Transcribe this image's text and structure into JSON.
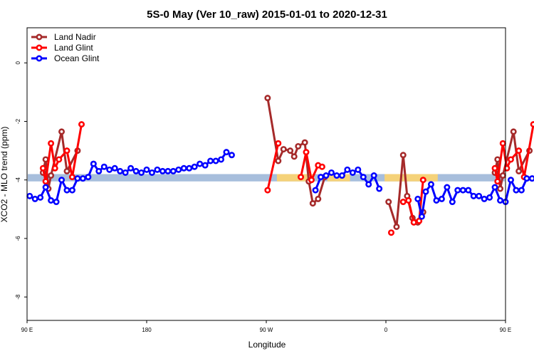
{
  "chart_data": {
    "type": "line",
    "title": "5S-0 May (Ver 10_raw)   2015-01-01 to 2020-12-31",
    "xlabel": "Longitude",
    "ylabel": "XCO2 - MLO trend (ppm)",
    "xlim": [
      90,
      450
    ],
    "ylim": [
      -8.8,
      1.2
    ],
    "x_ticks": [
      {
        "value": 90,
        "label": "90 E"
      },
      {
        "value": 180,
        "label": "180"
      },
      {
        "value": 270,
        "label": "90 W"
      },
      {
        "value": 360,
        "label": "0"
      },
      {
        "value": 450,
        "label": "90 E"
      },
      {
        "value": 540,
        "label": "180"
      }
    ],
    "y_ticks": [
      {
        "value": 0,
        "label": "0"
      },
      {
        "value": -2,
        "label": "-2"
      },
      {
        "value": -4,
        "label": "-4"
      },
      {
        "value": -6,
        "label": "-6"
      },
      {
        "value": -8,
        "label": "-8"
      }
    ],
    "grid": false,
    "legend_position": "top-left",
    "reference_band": {
      "y": [
        -4.05,
        -3.8
      ],
      "colors": {
        "ocean": "#a7bedc",
        "land": "#f5d279"
      },
      "land_segments": [
        [
          278,
          306
        ],
        [
          316,
          333
        ],
        [
          359,
          399
        ]
      ]
    },
    "series": [
      {
        "name": "Land Nadir",
        "color": "#a52a2a",
        "points": [
          [
            102,
            -3.75
          ],
          [
            104,
            -3.3
          ],
          [
            106,
            -4.3
          ],
          [
            108,
            -3.85
          ],
          [
            116,
            -2.35
          ],
          [
            120,
            -3.7
          ],
          [
            128,
            -3.0
          ],
          [
            271,
            -1.2
          ],
          [
            279,
            -3.35
          ],
          [
            283,
            -2.95
          ],
          [
            288,
            -3.0
          ],
          [
            291,
            -3.2
          ],
          [
            294,
            -2.85
          ],
          [
            299,
            -2.72
          ],
          [
            302,
            -4.05
          ],
          [
            305,
            -4.8
          ],
          [
            309,
            -4.65
          ],
          [
            314,
            -3.9
          ],
          [
            362,
            -4.75
          ],
          [
            368,
            -5.6
          ],
          [
            373,
            -3.15
          ],
          [
            376,
            -4.55
          ],
          [
            380,
            -5.3
          ],
          [
            384,
            -5.45
          ],
          [
            388,
            -5.1
          ],
          [
            442,
            -3.75
          ],
          [
            444,
            -3.3
          ],
          [
            446,
            -4.3
          ],
          [
            448,
            -3.85
          ],
          [
            456,
            -2.35
          ],
          [
            460,
            -3.7
          ],
          [
            468,
            -3.0
          ]
        ]
      },
      {
        "name": "Land Glint",
        "color": "#ff0000",
        "points": [
          [
            102,
            -3.6
          ],
          [
            104,
            -4.05
          ],
          [
            108,
            -2.75
          ],
          [
            111,
            -3.6
          ],
          [
            114,
            -3.3
          ],
          [
            120,
            -3.0
          ],
          [
            124,
            -3.9
          ],
          [
            131,
            -2.1
          ],
          [
            271,
            -4.35
          ],
          [
            279,
            -2.75
          ],
          [
            296,
            -3.9
          ],
          [
            300,
            -3.05
          ],
          [
            304,
            -4.0
          ],
          [
            309,
            -3.5
          ],
          [
            312,
            -3.55
          ],
          [
            364,
            -5.8
          ],
          [
            373,
            -4.75
          ],
          [
            377,
            -4.7
          ],
          [
            381,
            -5.45
          ],
          [
            385,
            -5.4
          ],
          [
            388,
            -4.0
          ],
          [
            442,
            -3.6
          ],
          [
            444,
            -4.05
          ],
          [
            448,
            -2.75
          ],
          [
            451,
            -3.6
          ],
          [
            454,
            -3.3
          ],
          [
            460,
            -3.0
          ],
          [
            464,
            -3.9
          ],
          [
            471,
            -2.1
          ]
        ]
      },
      {
        "name": "Ocean Glint",
        "color": "#0000ff",
        "points": [
          [
            92,
            -4.55
          ],
          [
            96,
            -4.65
          ],
          [
            100,
            -4.6
          ],
          [
            104,
            -4.25
          ],
          [
            108,
            -4.7
          ],
          [
            112,
            -4.75
          ],
          [
            116,
            -4.0
          ],
          [
            120,
            -4.35
          ],
          [
            124,
            -4.35
          ],
          [
            128,
            -3.95
          ],
          [
            132,
            -3.95
          ],
          [
            136,
            -3.9
          ],
          [
            140,
            -3.45
          ],
          [
            144,
            -3.7
          ],
          [
            148,
            -3.55
          ],
          [
            152,
            -3.65
          ],
          [
            156,
            -3.6
          ],
          [
            160,
            -3.7
          ],
          [
            164,
            -3.75
          ],
          [
            168,
            -3.6
          ],
          [
            172,
            -3.7
          ],
          [
            176,
            -3.75
          ],
          [
            180,
            -3.65
          ],
          [
            184,
            -3.75
          ],
          [
            188,
            -3.65
          ],
          [
            192,
            -3.7
          ],
          [
            196,
            -3.7
          ],
          [
            200,
            -3.7
          ],
          [
            204,
            -3.65
          ],
          [
            208,
            -3.6
          ],
          [
            212,
            -3.6
          ],
          [
            216,
            -3.55
          ],
          [
            220,
            -3.45
          ],
          [
            224,
            -3.5
          ],
          [
            228,
            -3.35
          ],
          [
            232,
            -3.35
          ],
          [
            236,
            -3.3
          ],
          [
            240,
            -3.05
          ],
          [
            244,
            -3.15
          ],
          [
            307,
            -4.35
          ],
          [
            311,
            -3.9
          ],
          [
            315,
            -3.85
          ],
          [
            319,
            -3.75
          ],
          [
            323,
            -3.85
          ],
          [
            327,
            -3.85
          ],
          [
            331,
            -3.65
          ],
          [
            335,
            -3.75
          ],
          [
            339,
            -3.65
          ],
          [
            343,
            -3.9
          ],
          [
            347,
            -4.15
          ],
          [
            351,
            -3.85
          ],
          [
            355,
            -4.3
          ],
          [
            384,
            -4.65
          ],
          [
            387,
            -5.25
          ],
          [
            390,
            -4.4
          ],
          [
            394,
            -4.15
          ],
          [
            398,
            -4.7
          ],
          [
            402,
            -4.65
          ],
          [
            406,
            -4.25
          ],
          [
            410,
            -4.75
          ],
          [
            414,
            -4.35
          ],
          [
            418,
            -4.35
          ],
          [
            422,
            -4.35
          ],
          [
            426,
            -4.55
          ],
          [
            430,
            -4.55
          ],
          [
            434,
            -4.65
          ],
          [
            438,
            -4.6
          ],
          [
            442,
            -4.25
          ],
          [
            446,
            -4.7
          ],
          [
            450,
            -4.75
          ],
          [
            454,
            -4.0
          ],
          [
            458,
            -4.35
          ],
          [
            462,
            -4.35
          ],
          [
            466,
            -3.95
          ],
          [
            470,
            -3.95
          ],
          [
            474,
            -3.9
          ],
          [
            478,
            -3.45
          ],
          [
            482,
            -3.7
          ],
          [
            486,
            -3.55
          ],
          [
            490,
            -3.65
          ],
          [
            494,
            -3.6
          ],
          [
            498,
            -3.7
          ]
        ]
      }
    ]
  }
}
